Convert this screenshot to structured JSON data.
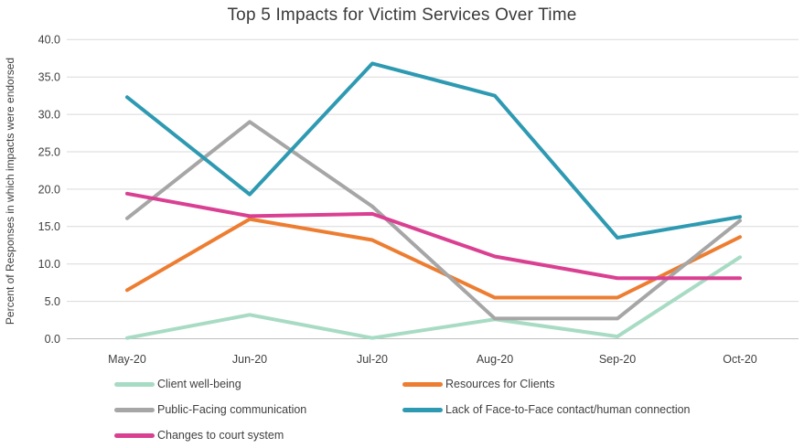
{
  "title": "Top 5 Impacts for Victim Services Over Time",
  "chart_data": {
    "type": "line",
    "title": "Top 5 Impacts for Victim Services Over Time",
    "ylabel": "Percent of Responses in which impacts were endorsed",
    "xlabel": "",
    "categories": [
      "May-20",
      "Jun-20",
      "Jul-20",
      "Aug-20",
      "Sep-20",
      "Oct-20"
    ],
    "series": [
      {
        "name": "Client well-being",
        "color": "#A8DBC4",
        "values": [
          0.1,
          3.2,
          0.1,
          2.6,
          0.3,
          10.9
        ]
      },
      {
        "name": "Resources for Clients",
        "color": "#ED7D31",
        "values": [
          6.5,
          16.0,
          13.2,
          5.5,
          5.5,
          13.6
        ]
      },
      {
        "name": "Public-Facing communication",
        "color": "#A6A6A6",
        "values": [
          16.1,
          29.0,
          17.7,
          2.7,
          2.7,
          15.8
        ]
      },
      {
        "name": "Lack of Face-to-Face contact/human connection",
        "color": "#2E9AB2",
        "values": [
          32.3,
          19.3,
          36.8,
          32.5,
          13.5,
          16.3
        ]
      },
      {
        "name": "Changes to court system",
        "color": "#DA4092",
        "values": [
          19.4,
          16.4,
          16.7,
          11.0,
          8.1,
          8.1
        ]
      }
    ],
    "ylim": [
      0,
      40
    ],
    "ytick_step": 5,
    "y_tick_labels": [
      "0.0",
      "5.0",
      "10.0",
      "15.0",
      "20.0",
      "25.0",
      "30.0",
      "35.0",
      "40.0"
    ],
    "grid": true,
    "legend_position": "bottom"
  },
  "legend": {
    "rows": [
      [
        "Client well-being",
        "Resources for Clients"
      ],
      [
        "Public-Facing communication",
        "Lack of Face-to-Face contact/human connection"
      ],
      [
        "Changes to court system"
      ]
    ]
  },
  "colors": {
    "gridline": "#D9D9D9",
    "axis_line": "#BFBFBF",
    "text": "#404040"
  }
}
